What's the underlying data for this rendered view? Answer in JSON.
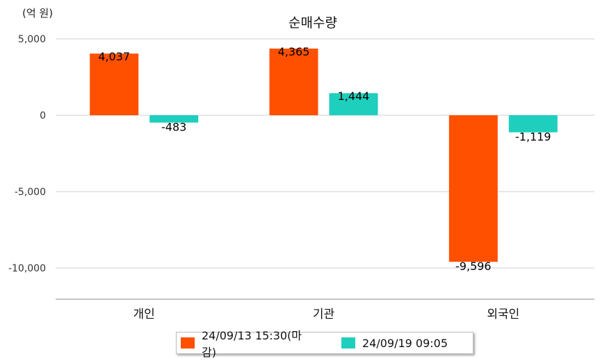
{
  "unit_label": "(억 원)",
  "chart_data": {
    "type": "bar",
    "title": "순매수량",
    "xlabel": "",
    "ylabel": "",
    "categories": [
      "개인",
      "기관",
      "외국인"
    ],
    "series": [
      {
        "name": "24/09/13 15:30(마감)",
        "color": "#ff5000",
        "values": [
          4037,
          4365,
          -9596
        ],
        "labels": [
          "4,037",
          "4,365",
          "-9,596"
        ]
      },
      {
        "name": "24/09/19 09:05",
        "color": "#1ecfbd",
        "values": [
          -483,
          1444,
          -1119
        ],
        "labels": [
          "-483",
          "1,444",
          "-1,119"
        ]
      }
    ],
    "yticks": [
      5000,
      0,
      -5000,
      -10000
    ],
    "ytick_labels": [
      "5,000",
      "0",
      "-5,000",
      "-10,000"
    ],
    "ylim": [
      -12000,
      5000
    ],
    "grid": true,
    "legend_position": "bottom"
  }
}
